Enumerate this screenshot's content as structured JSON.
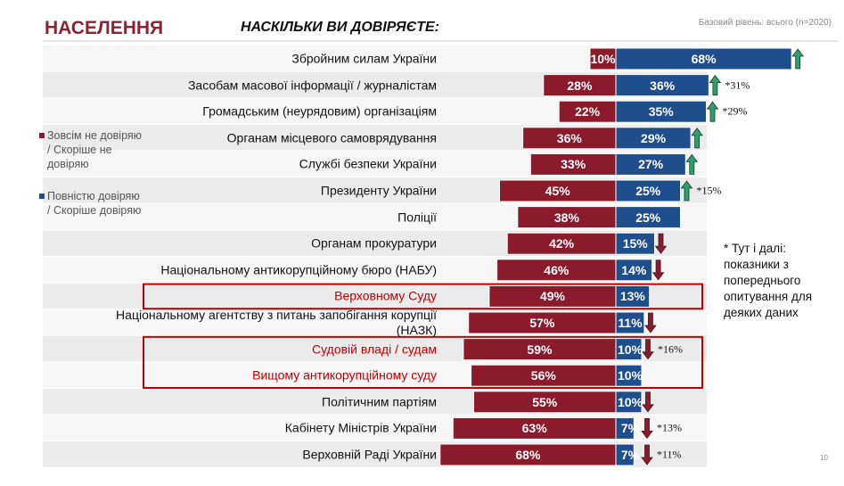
{
  "header": "НАСЕЛЕННЯ",
  "chart_data": {
    "type": "diverging-bar",
    "title": "НАСКІЛЬКИ ВИ ДОВІРЯЄТЕ:",
    "subtitle": "Базовий рівень: всього (n=2020)",
    "categories": [
      "Збройним силам України",
      "Засобам масової інформації / журналістам",
      "Громадським (неурядовим) організаціям",
      "Органам місцевого самоврядування",
      "Службі безпеки України",
      "Президенту України",
      "Поліції",
      "Органам прокуратури",
      "Національному антикорупційному бюро (НАБУ)",
      "Верховному Суду",
      "Національному агентству з питань запобігання корупції (НАЗК)",
      "Судовій владі / судам",
      "Вищому антикорупційному суду",
      "Політичним партіям",
      "Кабінету Міністрів України",
      "Верховній Раді України"
    ],
    "series": [
      {
        "name": "Зовсім не довіряю / Скоріше не довіряю",
        "color": "#8b1a2b",
        "direction": "left",
        "values": [
          10,
          28,
          22,
          36,
          33,
          45,
          38,
          42,
          46,
          49,
          57,
          59,
          56,
          55,
          63,
          68
        ],
        "value_labels": [
          "10%",
          "28%",
          "22%",
          "36%",
          "33%",
          "45%",
          "38%",
          "42%",
          "46%",
          "49%",
          "57%",
          "59%",
          "56%",
          "55%",
          "63%",
          "68%"
        ]
      },
      {
        "name": "Повністю довіряю / Скоріше довіряю",
        "color": "#1f4e8c",
        "direction": "right",
        "values": [
          68,
          36,
          35,
          29,
          27,
          25,
          25,
          15,
          14,
          13,
          11,
          10,
          10,
          10,
          7,
          7
        ],
        "value_labels": [
          "68%",
          "36%",
          "35%",
          "29%",
          "27%",
          "25%",
          "25%",
          "15%",
          "14%",
          "13%",
          "11%",
          "10%",
          "10%",
          "10%",
          "7%",
          "7%"
        ]
      }
    ],
    "trend": [
      "up",
      "up",
      "up",
      "up",
      "up",
      "up",
      null,
      "down",
      "down",
      null,
      "down",
      "down",
      null,
      "down",
      "down",
      "down"
    ],
    "trend_notes": [
      null,
      "*31%",
      "*29%",
      null,
      null,
      "*15%",
      null,
      null,
      null,
      null,
      null,
      "*16%",
      null,
      null,
      "*13%",
      "*11%"
    ],
    "highlight_groups": [
      [
        9,
        9
      ],
      [
        11,
        12
      ]
    ],
    "note": "* Тут і далі: показники з попереднього опитування для деяких даних"
  },
  "page_number": "10"
}
